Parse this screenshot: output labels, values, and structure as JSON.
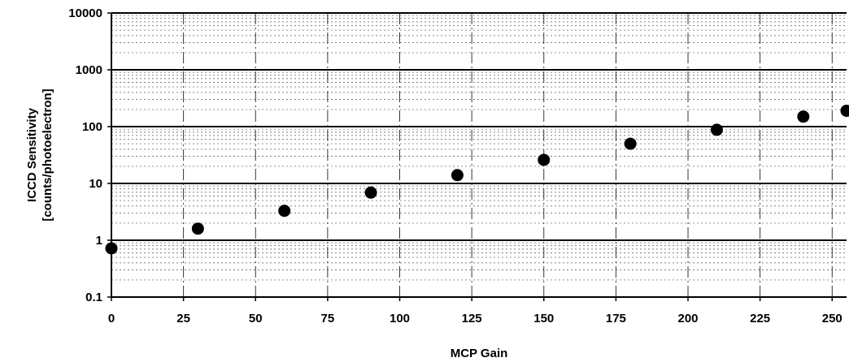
{
  "chart_data": {
    "type": "scatter",
    "title": "",
    "xlabel": "MCP Gain",
    "ylabel_lines": [
      "ICCD Sensitivity",
      "[counts/photoelectron]"
    ],
    "x_ticks": [
      "0",
      "25",
      "50",
      "75",
      "100",
      "125",
      "150",
      "175",
      "200",
      "225",
      "250"
    ],
    "y_ticks": [
      "0.1",
      "1",
      "10",
      "100",
      "1000",
      "10000"
    ],
    "xlim": [
      0,
      255
    ],
    "ylim": [
      0.1,
      10000
    ],
    "y_scale": "log",
    "grid": true,
    "legend": "none",
    "marker_color": "#000000",
    "series": [
      {
        "x": [
          0,
          30,
          60,
          90,
          120,
          150,
          180,
          210,
          240,
          255
        ],
        "y": [
          0.72,
          1.6,
          3.3,
          6.9,
          14,
          26,
          50,
          88,
          150,
          190
        ]
      }
    ]
  }
}
